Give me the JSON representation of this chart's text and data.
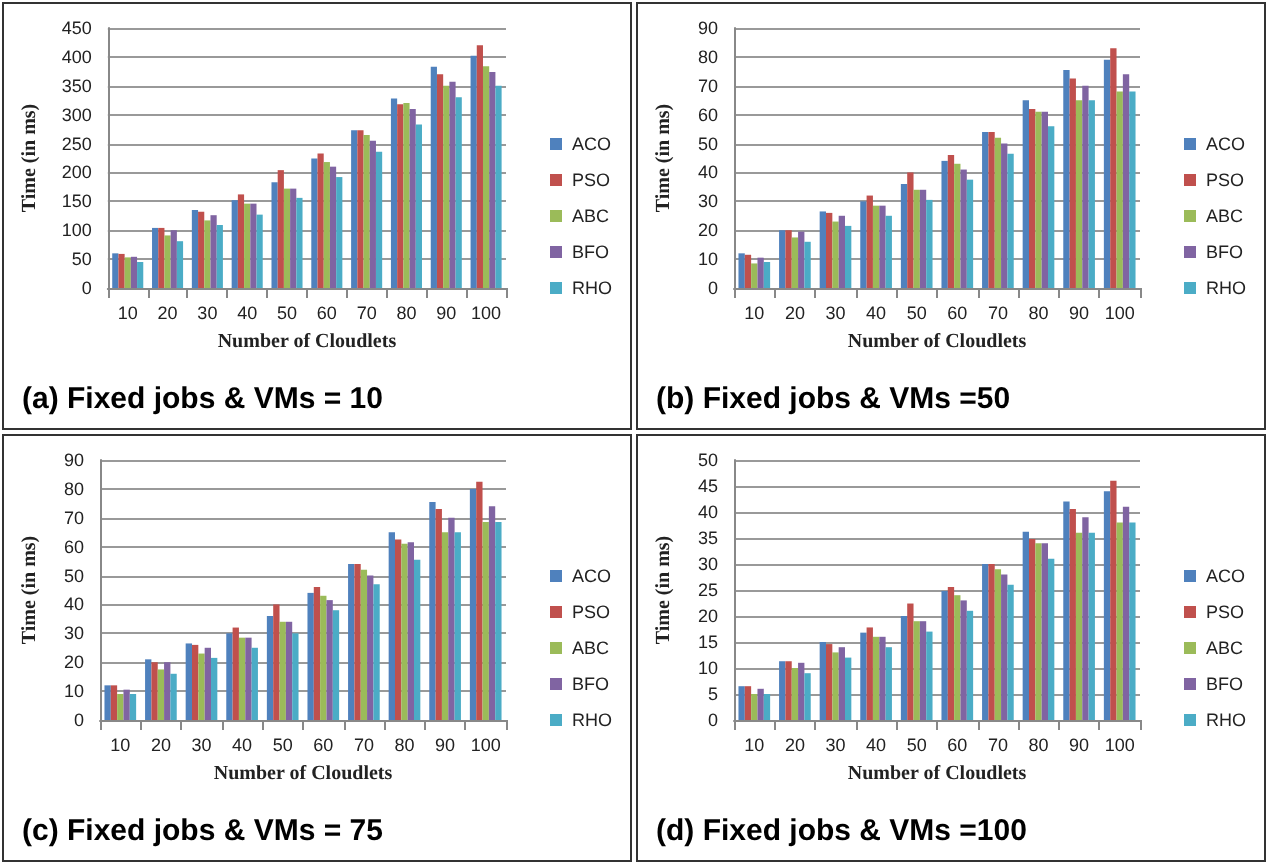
{
  "chart_data": [
    {
      "type": "bar",
      "title": "(a) Fixed jobs & VMs = 10",
      "xlabel": "Number of Cloudlets",
      "ylabel": "Time (in ms)",
      "categories": [
        "10",
        "20",
        "30",
        "40",
        "50",
        "60",
        "70",
        "80",
        "90",
        "100"
      ],
      "ylim": [
        0,
        450
      ],
      "yticks": [
        0,
        50,
        100,
        150,
        200,
        250,
        300,
        350,
        400,
        450
      ],
      "grid": "y",
      "legend": "right",
      "series": [
        {
          "name": "ACO",
          "color": "#4f81bd",
          "values": [
            60,
            104,
            135,
            152,
            183,
            224,
            273,
            328,
            383,
            402
          ]
        },
        {
          "name": "PSO",
          "color": "#c0504d",
          "values": [
            59,
            104,
            132,
            162,
            204,
            233,
            273,
            318,
            370,
            420
          ]
        },
        {
          "name": "ABC",
          "color": "#9bbb59",
          "values": [
            53,
            91,
            117,
            146,
            172,
            218,
            265,
            320,
            350,
            384
          ]
        },
        {
          "name": "BFO",
          "color": "#8064a2",
          "values": [
            54,
            100,
            126,
            146,
            172,
            210,
            255,
            310,
            357,
            374
          ]
        },
        {
          "name": "RHO",
          "color": "#4bacc6",
          "values": [
            45,
            81,
            109,
            127,
            156,
            192,
            236,
            283,
            330,
            350
          ]
        }
      ]
    },
    {
      "type": "bar",
      "title": "(b) Fixed jobs & VMs =50",
      "xlabel": "Number of Cloudlets",
      "ylabel": "Time (in ms)",
      "categories": [
        "10",
        "20",
        "30",
        "40",
        "50",
        "60",
        "70",
        "80",
        "90",
        "100"
      ],
      "ylim": [
        0,
        90
      ],
      "yticks": [
        0,
        10,
        20,
        30,
        40,
        50,
        60,
        70,
        80,
        90
      ],
      "grid": "y",
      "legend": "right",
      "series": [
        {
          "name": "ACO",
          "color": "#4f81bd",
          "values": [
            12,
            20,
            26.5,
            30,
            36,
            44,
            54,
            65,
            75.5,
            79
          ]
        },
        {
          "name": "PSO",
          "color": "#c0504d",
          "values": [
            11.5,
            20,
            26,
            32,
            40,
            46,
            54,
            62,
            72.5,
            83
          ]
        },
        {
          "name": "ABC",
          "color": "#9bbb59",
          "values": [
            8.5,
            17.5,
            23,
            28.5,
            34,
            43,
            52,
            61,
            65,
            68
          ]
        },
        {
          "name": "BFO",
          "color": "#8064a2",
          "values": [
            10.5,
            19.5,
            25,
            28.5,
            34,
            41,
            50,
            61,
            70,
            74
          ]
        },
        {
          "name": "RHO",
          "color": "#4bacc6",
          "values": [
            9,
            16,
            21.5,
            25,
            30.5,
            37.5,
            46.5,
            56,
            65,
            68
          ]
        }
      ]
    },
    {
      "type": "bar",
      "title": "(c) Fixed jobs & VMs = 75",
      "xlabel": "Number of Cloudlets",
      "ylabel": "Time (in ms)",
      "categories": [
        "10",
        "20",
        "30",
        "40",
        "50",
        "60",
        "70",
        "80",
        "90",
        "100"
      ],
      "ylim": [
        0,
        90
      ],
      "yticks": [
        0,
        10,
        20,
        30,
        40,
        50,
        60,
        70,
        80,
        90
      ],
      "grid": "y",
      "legend": "right",
      "series": [
        {
          "name": "ACO",
          "color": "#4f81bd",
          "values": [
            12,
            21,
            26.5,
            30,
            36,
            44,
            54,
            65,
            75.5,
            80
          ]
        },
        {
          "name": "PSO",
          "color": "#c0504d",
          "values": [
            12,
            20,
            26,
            32,
            40,
            46,
            54,
            62.5,
            73,
            82.5
          ]
        },
        {
          "name": "ABC",
          "color": "#9bbb59",
          "values": [
            9,
            17.5,
            23,
            28.5,
            34,
            43,
            52,
            61,
            65,
            68.5
          ]
        },
        {
          "name": "BFO",
          "color": "#8064a2",
          "values": [
            10.5,
            20,
            25,
            28.5,
            34,
            41.5,
            50,
            61.5,
            70,
            74
          ]
        },
        {
          "name": "RHO",
          "color": "#4bacc6",
          "values": [
            9,
            16,
            21.5,
            25,
            30,
            38,
            47,
            55.5,
            65,
            68.5
          ]
        }
      ]
    },
    {
      "type": "bar",
      "title": "(d) Fixed jobs & VMs =100",
      "xlabel": "Number of Cloudlets",
      "ylabel": "Time (in ms)",
      "categories": [
        "10",
        "20",
        "30",
        "40",
        "50",
        "60",
        "70",
        "80",
        "90",
        "100"
      ],
      "ylim": [
        0,
        50
      ],
      "yticks": [
        0,
        5,
        10,
        15,
        20,
        25,
        30,
        35,
        40,
        45,
        50
      ],
      "grid": "y",
      "legend": "right",
      "series": [
        {
          "name": "ACO",
          "color": "#4f81bd",
          "values": [
            6.5,
            11.3,
            15,
            16.8,
            20,
            24.8,
            30,
            36.2,
            42,
            44
          ]
        },
        {
          "name": "PSO",
          "color": "#c0504d",
          "values": [
            6.5,
            11.3,
            14.6,
            17.8,
            22.4,
            25.6,
            30,
            34.8,
            40.6,
            46
          ]
        },
        {
          "name": "ABC",
          "color": "#9bbb59",
          "values": [
            5,
            10,
            13,
            16,
            19,
            24,
            29,
            34,
            36,
            38
          ]
        },
        {
          "name": "BFO",
          "color": "#8064a2",
          "values": [
            6,
            11,
            14,
            16,
            19,
            23,
            28,
            34,
            39,
            41
          ]
        },
        {
          "name": "RHO",
          "color": "#4bacc6",
          "values": [
            5,
            9,
            12,
            14,
            17,
            21,
            26,
            31,
            36,
            38
          ]
        }
      ]
    }
  ]
}
